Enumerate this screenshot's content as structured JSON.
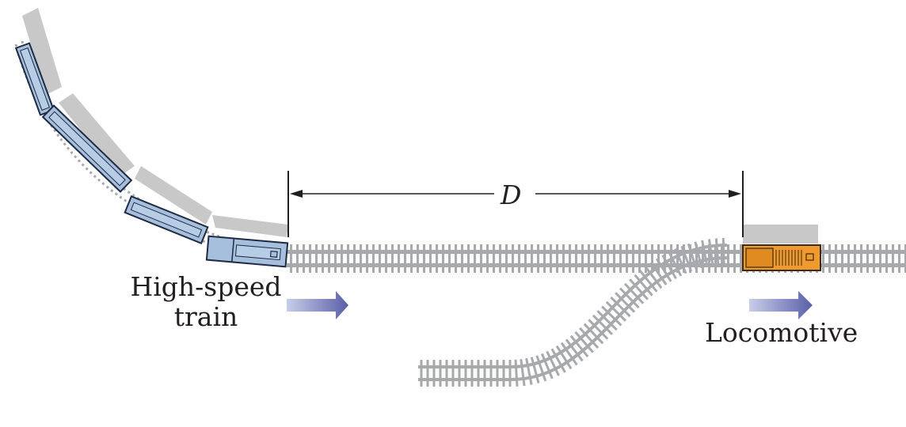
{
  "labels": {
    "train_line1": "High-speed",
    "train_line2": "train",
    "locomotive": "Locomotive",
    "distance": "D"
  },
  "colors": {
    "rail": "#a7a9ac",
    "shadow": "#c8c8c9",
    "train_body": "#a6bfdc",
    "train_outline": "#1f2a44",
    "locomotive_body": "#f0992e",
    "locomotive_outline": "#3b2a10",
    "arrow_light": "#c8cdea",
    "arrow_dark": "#5a5fa8",
    "dimension_line": "#231f20"
  },
  "icons": {
    "train_arrow": "right-arrow-icon",
    "locomotive_arrow": "right-arrow-icon"
  }
}
